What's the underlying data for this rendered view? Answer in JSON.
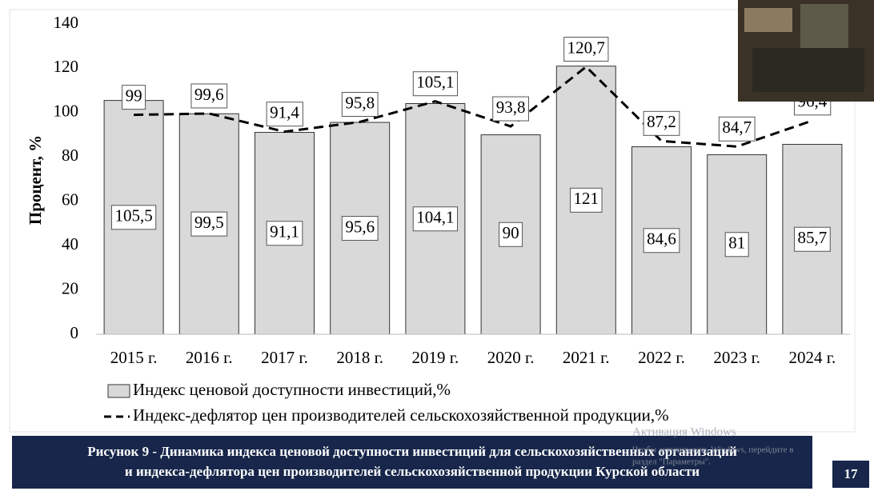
{
  "chart_data": {
    "type": "bar",
    "categories": [
      "2015 г.",
      "2016 г.",
      "2017 г.",
      "2018 г.",
      "2019 г.",
      "2020 г.",
      "2021 г.",
      "2022 г.",
      "2023 г.",
      "2024 г."
    ],
    "series": [
      {
        "name": "Индекс ценовой доступности инвестиций,%",
        "type": "bar",
        "color": "#d9d9d9",
        "values": [
          105.5,
          99.5,
          91.1,
          95.6,
          104.1,
          90,
          121,
          84.6,
          81,
          85.7
        ],
        "value_labels": [
          "105,5",
          "99,5",
          "91,1",
          "95,6",
          "104,1",
          "90",
          "121",
          "84,6",
          "81",
          "85,7"
        ]
      },
      {
        "name": "Индекс-дефлятор цен производителей сельскохозяйственной продукции,%",
        "type": "line",
        "color": "#000000",
        "dashed": true,
        "values": [
          99,
          99.6,
          91.4,
          95.8,
          105.1,
          93.8,
          120.7,
          87.2,
          84.7,
          96.4
        ],
        "value_labels": [
          "99",
          "99,6",
          "91,4",
          "95,8",
          "105,1",
          "93,8",
          "120,7",
          "87,2",
          "84,7",
          "96,4"
        ]
      }
    ],
    "y_label": "Процент, %",
    "ylim": [
      0,
      140
    ],
    "yticks": [
      0,
      20,
      40,
      60,
      80,
      100,
      120,
      140
    ],
    "grid": false,
    "legend": "bottom"
  },
  "caption": [
    "Рисунок 9 - Динамика индекса ценовой доступности инвестиций для сельскохозяйственных организаций",
    "и индекса-дефлятора цен производителей сельскохозяйственной продукции Курской области"
  ],
  "page_number": "17",
  "watermark": {
    "title": "Активация Windows",
    "lines": [
      "Чтобы активировать Windows, перейдите в",
      "раздел \"Параметры\"."
    ]
  }
}
